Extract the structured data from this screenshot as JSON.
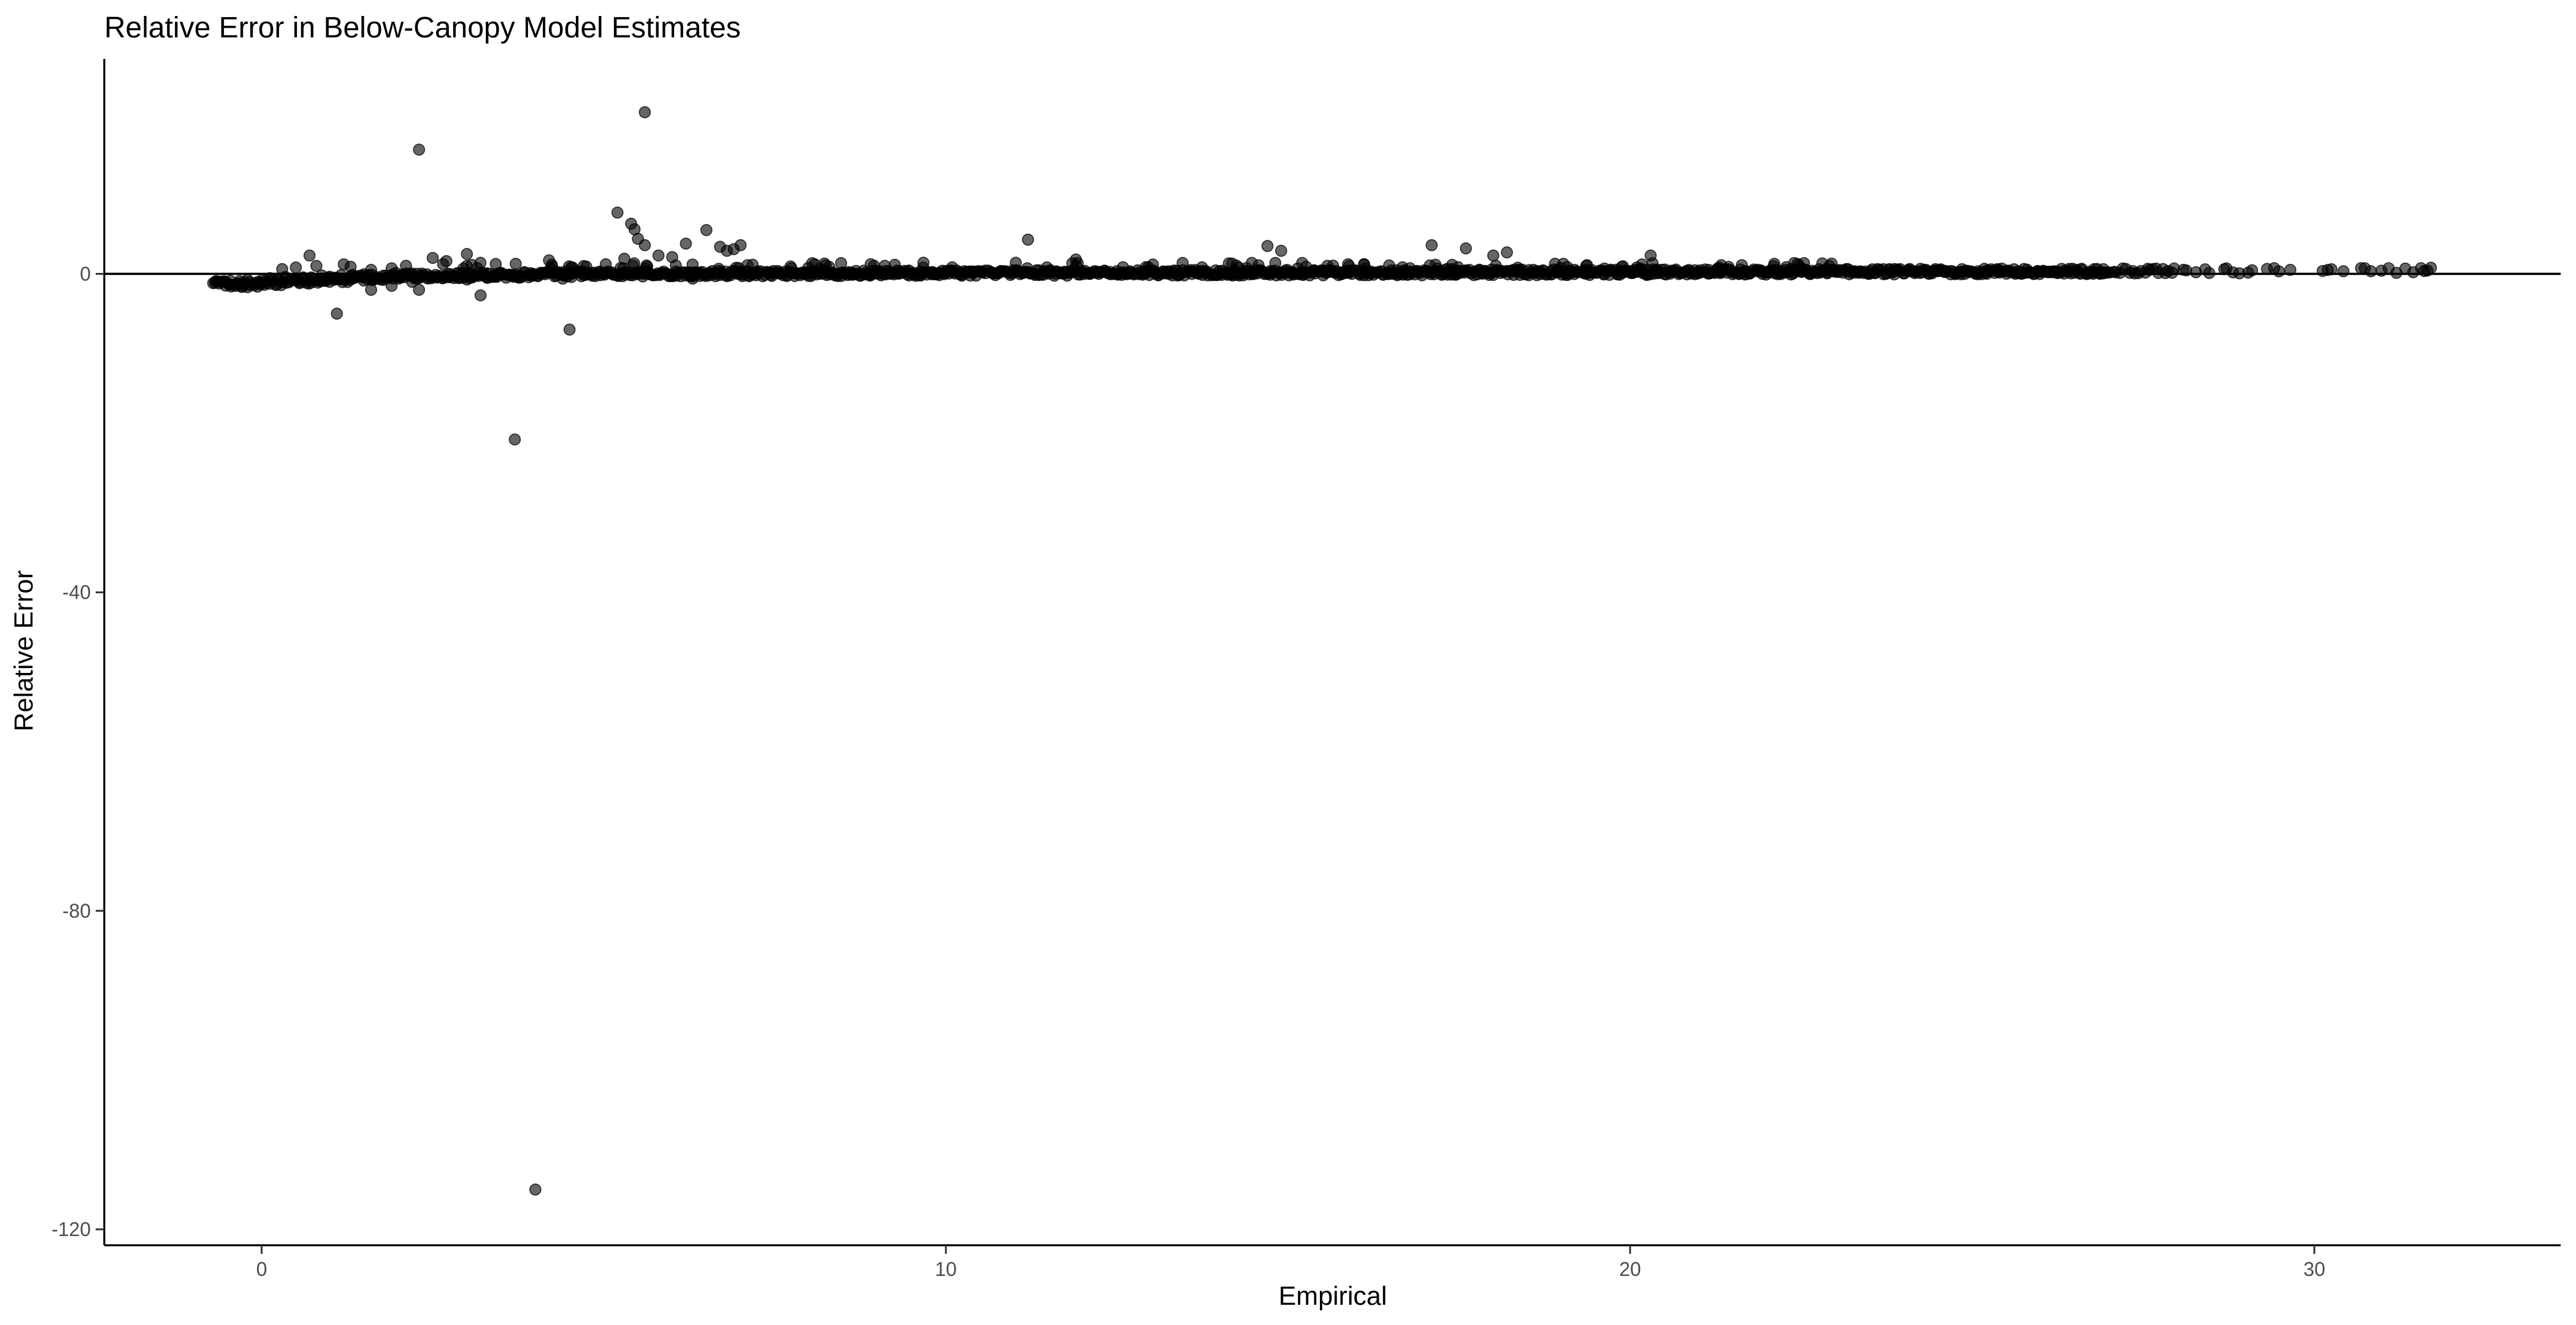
{
  "chart_data": {
    "type": "scatter",
    "title": "Relative Error in Below-Canopy Model Estimates",
    "xlabel": "Empirical",
    "ylabel": "Relative Error",
    "xlim": [
      -2.3,
      33.6
    ],
    "ylim": [
      -122.0,
      27.0
    ],
    "x_ticks": [
      0,
      10,
      20,
      30
    ],
    "y_ticks": [
      0,
      -40,
      -80,
      -120
    ],
    "x_tick_labels": [
      "0",
      "10",
      "20",
      "30"
    ],
    "y_tick_labels": [
      "0",
      "-40",
      "-80",
      "-120"
    ],
    "reference_line": {
      "y": 0
    },
    "grid": false,
    "legend": "none",
    "point_color": "#000000",
    "point_opacity": 0.6,
    "outliers": [
      {
        "x": 5.6,
        "y": 20.3
      },
      {
        "x": 2.3,
        "y": 15.6
      },
      {
        "x": 5.2,
        "y": 7.7
      },
      {
        "x": 5.4,
        "y": 6.3
      },
      {
        "x": 5.45,
        "y": 5.6
      },
      {
        "x": 6.5,
        "y": 5.5
      },
      {
        "x": 5.5,
        "y": 4.4
      },
      {
        "x": 11.2,
        "y": 4.3
      },
      {
        "x": 6.2,
        "y": 3.8
      },
      {
        "x": 5.6,
        "y": 3.6
      },
      {
        "x": 7.0,
        "y": 3.6
      },
      {
        "x": 17.1,
        "y": 3.6
      },
      {
        "x": 14.7,
        "y": 3.5
      },
      {
        "x": 6.7,
        "y": 3.4
      },
      {
        "x": 6.9,
        "y": 3.1
      },
      {
        "x": 17.6,
        "y": 3.2
      },
      {
        "x": 14.9,
        "y": 2.9
      },
      {
        "x": 6.8,
        "y": 2.9
      },
      {
        "x": 18.2,
        "y": 2.7
      },
      {
        "x": 3.0,
        "y": 2.5
      },
      {
        "x": 5.8,
        "y": 2.3
      },
      {
        "x": 0.7,
        "y": 2.3
      },
      {
        "x": 18.0,
        "y": 2.3
      },
      {
        "x": 20.3,
        "y": 2.3
      },
      {
        "x": 6.0,
        "y": 2.1
      },
      {
        "x": 2.5,
        "y": 2.0
      },
      {
        "x": 5.3,
        "y": 1.9
      },
      {
        "x": 4.2,
        "y": 1.7
      },
      {
        "x": 2.7,
        "y": 1.6
      },
      {
        "x": 11.9,
        "y": 1.8
      },
      {
        "x": 1.2,
        "y": 1.2
      },
      {
        "x": 1.3,
        "y": 0.9
      },
      {
        "x": 0.8,
        "y": 1.0
      },
      {
        "x": 0.5,
        "y": 0.8
      },
      {
        "x": 0.3,
        "y": 0.6
      },
      {
        "x": 1.9,
        "y": 0.7
      },
      {
        "x": 1.6,
        "y": 0.5
      },
      {
        "x": 2.0,
        "y": -0.6
      },
      {
        "x": 2.2,
        "y": -1.0
      },
      {
        "x": 1.6,
        "y": -2.0
      },
      {
        "x": 1.9,
        "y": -1.5
      },
      {
        "x": 2.3,
        "y": -2.0
      },
      {
        "x": 3.2,
        "y": -2.7
      },
      {
        "x": 1.1,
        "y": -5.0
      },
      {
        "x": 4.5,
        "y": -7.0
      },
      {
        "x": 3.7,
        "y": -20.8
      },
      {
        "x": 3.0,
        "y": -0.7
      },
      {
        "x": 3.3,
        "y": -0.5
      },
      {
        "x": 4.4,
        "y": -0.6
      },
      {
        "x": 6.3,
        "y": -0.6
      },
      {
        "x": 4.0,
        "y": -115.0
      }
    ],
    "band": {
      "description_x_from": -0.7,
      "description_x_to": 32.0,
      "y_center_formula_points": [
        {
          "x": -0.7,
          "y": -1.3
        },
        {
          "x": -0.2,
          "y": -1.2
        },
        {
          "x": 0.5,
          "y": -0.8
        },
        {
          "x": 2.0,
          "y": -0.3
        },
        {
          "x": 5.0,
          "y": 0.0
        },
        {
          "x": 10.0,
          "y": 0.1
        },
        {
          "x": 20.0,
          "y": 0.2
        },
        {
          "x": 25.0,
          "y": 0.3
        },
        {
          "x": 30.0,
          "y": 0.4
        },
        {
          "x": 32.0,
          "y": 0.5
        }
      ]
    }
  }
}
